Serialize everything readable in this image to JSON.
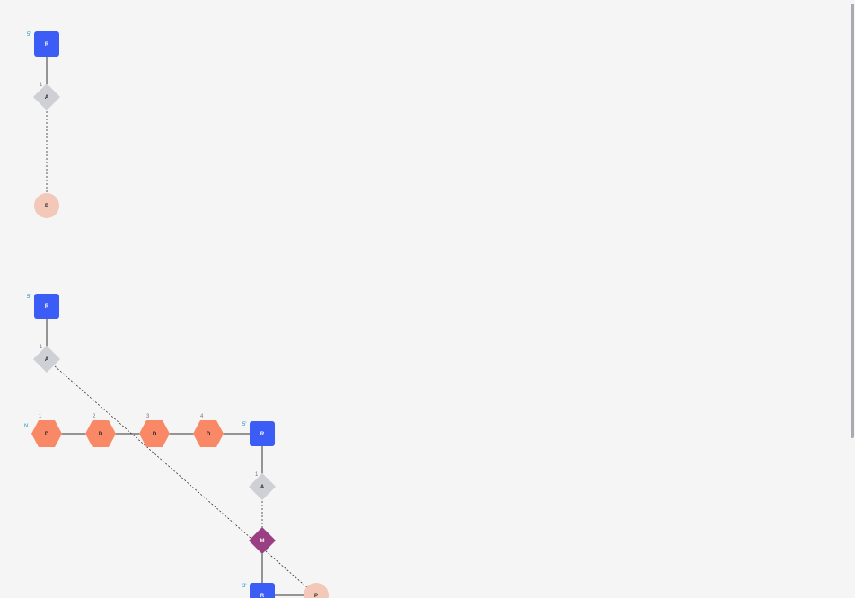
{
  "colors": {
    "background": "#f5f5f5",
    "R": "#3c5cf6",
    "A": "#cfcfd6",
    "P": "#f3c8b9",
    "D": "#f98866",
    "M": "#9b3f85",
    "edge": "#333333",
    "end_label": "#1a8fc4",
    "index_label": "#777777",
    "node_text": "#222222",
    "node_text_light": "#ffffff"
  },
  "diagram": {
    "node_types": {
      "R": "rounded-square",
      "A": "diamond",
      "P": "circle",
      "D": "hexagon",
      "M": "diamond"
    },
    "nodes": [
      {
        "id": "g1_r",
        "type": "R",
        "label": "R",
        "end_label": "5'"
      },
      {
        "id": "g1_a",
        "type": "A",
        "label": "A",
        "index_label": "1"
      },
      {
        "id": "g1_p",
        "type": "P",
        "label": "P"
      },
      {
        "id": "g2_r",
        "type": "R",
        "label": "R",
        "end_label": "5'"
      },
      {
        "id": "g2_a",
        "type": "A",
        "label": "A",
        "index_label": "1"
      },
      {
        "id": "d1",
        "type": "D",
        "label": "D",
        "index_label": "1",
        "end_label": "N"
      },
      {
        "id": "d2",
        "type": "D",
        "label": "D",
        "index_label": "2"
      },
      {
        "id": "d3",
        "type": "D",
        "label": "D",
        "index_label": "3"
      },
      {
        "id": "d4",
        "type": "D",
        "label": "D",
        "index_label": "4"
      },
      {
        "id": "g3_r",
        "type": "R",
        "label": "R",
        "end_label": "5'"
      },
      {
        "id": "g3_a",
        "type": "A",
        "label": "A",
        "index_label": "1"
      },
      {
        "id": "m",
        "type": "M",
        "label": "M"
      },
      {
        "id": "g4_r",
        "type": "R",
        "label": "R",
        "end_label": "3'"
      },
      {
        "id": "g4_p",
        "type": "P",
        "label": "P"
      }
    ],
    "edges": [
      {
        "from": "g1_r",
        "to": "g1_a",
        "style": "solid"
      },
      {
        "from": "g1_a",
        "to": "g1_p",
        "style": "dashed"
      },
      {
        "from": "g2_r",
        "to": "g2_a",
        "style": "solid"
      },
      {
        "from": "g2_a",
        "to": "g4_p",
        "style": "dashed"
      },
      {
        "from": "d1",
        "to": "d2",
        "style": "solid"
      },
      {
        "from": "d2",
        "to": "d3",
        "style": "solid"
      },
      {
        "from": "d3",
        "to": "d4",
        "style": "solid"
      },
      {
        "from": "d4",
        "to": "g3_r",
        "style": "solid"
      },
      {
        "from": "g3_r",
        "to": "g3_a",
        "style": "solid"
      },
      {
        "from": "g3_a",
        "to": "m",
        "style": "dashed"
      },
      {
        "from": "m",
        "to": "g4_r",
        "style": "solid"
      },
      {
        "from": "g4_r",
        "to": "g4_p",
        "style": "solid"
      }
    ]
  }
}
